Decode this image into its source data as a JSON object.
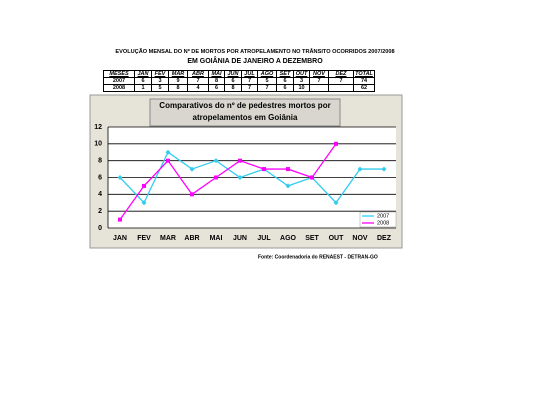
{
  "header": {
    "title": "EVOLUÇÃO MENSAL DO Nº DE MORTOS POR ATROPELAMENTO NO TRÂNSITO OCORRIDOS  2007/2008",
    "subtitle": "EM GOIÂNIA DE JANEIRO A DEZEMBRO"
  },
  "table": {
    "columns": [
      "MESES",
      "JAN",
      "FEV",
      "MAR",
      "ABR",
      "MAI",
      "JUN",
      "JUL",
      "AGO",
      "SET",
      "OUT",
      "NOV",
      "DEZ",
      "TOTAL"
    ],
    "rows": [
      [
        "2007",
        6,
        3,
        9,
        7,
        8,
        6,
        7,
        5,
        6,
        3,
        7,
        7,
        74
      ],
      [
        "2008",
        1,
        5,
        8,
        4,
        6,
        8,
        7,
        7,
        6,
        10,
        null,
        null,
        62
      ]
    ]
  },
  "chart_data": {
    "type": "line",
    "title": [
      "Comparativos do nº de pedestres mortos por",
      "atropelamentos em Goiânia"
    ],
    "categories": [
      "JAN",
      "FEV",
      "MAR",
      "ABR",
      "MAI",
      "JUN",
      "JUL",
      "AGO",
      "SET",
      "OUT",
      "NOV",
      "DEZ"
    ],
    "series": [
      {
        "name": "2007",
        "color": "#33ccee",
        "values": [
          6,
          3,
          9,
          7,
          8,
          6,
          7,
          5,
          6,
          3,
          7,
          7
        ]
      },
      {
        "name": "2008",
        "color": "#ff00ff",
        "values": [
          1,
          5,
          8,
          4,
          6,
          8,
          7,
          7,
          6,
          10,
          null,
          null
        ]
      }
    ],
    "ylim": [
      0,
      12
    ],
    "yticks": [
      0,
      2,
      4,
      6,
      8,
      10,
      12
    ],
    "grid": true,
    "legend": "bottom-right"
  },
  "source": "Fonte: Coordenadoria do RENAEST - DETRAN-GO"
}
